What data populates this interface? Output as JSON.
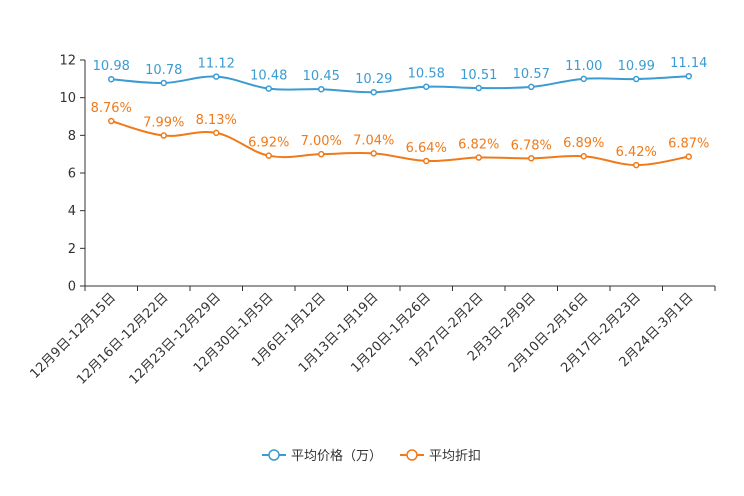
{
  "chart_data": {
    "type": "line",
    "title": "",
    "xlabel": "",
    "ylabel": "",
    "ylim": [
      0,
      12
    ],
    "yticks": [
      0,
      2,
      4,
      6,
      8,
      10,
      12
    ],
    "categories": [
      "12月9日-12月15日",
      "12月16日-12月22日",
      "12月23日-12月29日",
      "12月30日-1月5日",
      "1月6日-1月12日",
      "1月13日-1月19日",
      "1月20日-1月26日",
      "1月27日-2月2日",
      "2月3日-2月9日",
      "2月10日-2月16日",
      "2月17日-2月23日",
      "2月24日-3月1日"
    ],
    "series": [
      {
        "name": "平均价格（万）",
        "color": "#3b9bd2",
        "values": [
          10.98,
          10.78,
          11.12,
          10.48,
          10.45,
          10.29,
          10.58,
          10.51,
          10.57,
          11.0,
          10.99,
          11.14
        ],
        "labels": [
          "10.98",
          "10.78",
          "11.12",
          "10.48",
          "10.45",
          "10.29",
          "10.58",
          "10.51",
          "10.57",
          "11.00",
          "10.99",
          "11.14"
        ]
      },
      {
        "name": "平均折扣",
        "color": "#f07a1a",
        "values": [
          8.76,
          7.99,
          8.13,
          6.92,
          7.0,
          7.04,
          6.64,
          6.82,
          6.78,
          6.89,
          6.42,
          6.87
        ],
        "labels": [
          "8.76%",
          "7.99%",
          "8.13%",
          "6.92%",
          "7.00%",
          "7.04%",
          "6.64%",
          "6.82%",
          "6.78%",
          "6.89%",
          "6.42%",
          "6.87%"
        ]
      }
    ],
    "legend_position": "bottom-center",
    "grid": false
  }
}
